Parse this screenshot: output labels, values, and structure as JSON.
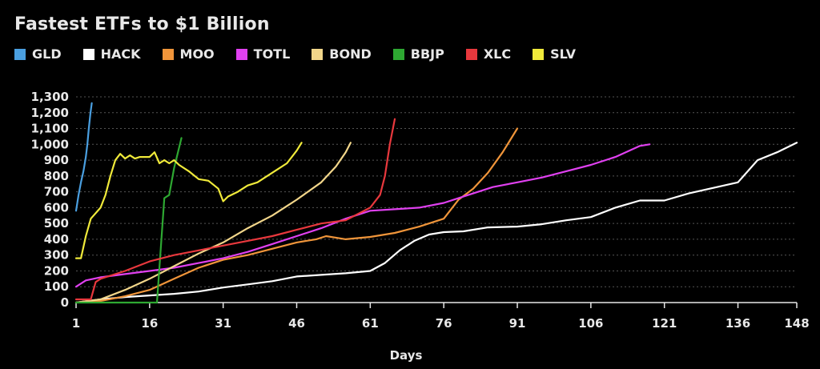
{
  "chart_data": {
    "type": "line",
    "title": "Fastest ETFs to $1 Billion",
    "xlabel": "Days",
    "ylabel": "",
    "xlim": [
      1,
      148
    ],
    "ylim": [
      0,
      1300
    ],
    "x_ticks": [
      1,
      16,
      31,
      46,
      61,
      76,
      91,
      106,
      121,
      136,
      148
    ],
    "y_ticks": [
      0,
      100,
      200,
      300,
      400,
      500,
      600,
      700,
      800,
      900,
      1000,
      1100,
      1200,
      1300
    ],
    "y_tick_labels": [
      "0",
      "100",
      "200",
      "300",
      "400",
      "500",
      "600",
      "700",
      "800",
      "900",
      "1,000",
      "1,100",
      "1,200",
      "1,300"
    ],
    "grid": "horizontal dashed",
    "legend_position": "top-left",
    "series": [
      {
        "name": "GLD",
        "color": "#4a9fe0",
        "x": [
          1,
          1.5,
          2,
          2.5,
          3,
          3.3,
          3.6,
          3.9,
          4.2
        ],
        "y": [
          580,
          680,
          760,
          830,
          920,
          1000,
          1100,
          1190,
          1260
        ]
      },
      {
        "name": "HACK",
        "color": "#ffffff",
        "x": [
          1,
          6,
          11,
          16,
          21,
          26,
          31,
          36,
          41,
          46,
          51,
          56,
          61,
          64,
          67,
          70,
          73,
          76,
          80,
          85,
          91,
          96,
          101,
          106,
          111,
          116,
          121,
          126,
          131,
          136,
          140,
          144,
          148
        ],
        "y": [
          0,
          20,
          35,
          45,
          55,
          70,
          95,
          115,
          135,
          165,
          175,
          185,
          200,
          250,
          330,
          390,
          430,
          445,
          450,
          475,
          480,
          495,
          520,
          540,
          600,
          645,
          645,
          690,
          725,
          760,
          900,
          950,
          1010
        ]
      },
      {
        "name": "MOO",
        "color": "#f0953a",
        "x": [
          1,
          6,
          11,
          16,
          21,
          26,
          31,
          36,
          41,
          46,
          50,
          52,
          54,
          56,
          61,
          66,
          71,
          76,
          79,
          82,
          85,
          88,
          91
        ],
        "y": [
          0,
          10,
          40,
          80,
          150,
          220,
          270,
          300,
          340,
          380,
          400,
          420,
          410,
          400,
          415,
          440,
          480,
          530,
          650,
          720,
          820,
          950,
          1100
        ]
      },
      {
        "name": "TOTL",
        "color": "#e040f0",
        "x": [
          1,
          3,
          6,
          11,
          16,
          21,
          26,
          31,
          36,
          41,
          46,
          51,
          56,
          61,
          66,
          71,
          76,
          81,
          86,
          91,
          96,
          101,
          106,
          111,
          116,
          118
        ],
        "y": [
          100,
          140,
          160,
          180,
          200,
          220,
          250,
          280,
          320,
          370,
          420,
          470,
          530,
          580,
          590,
          600,
          630,
          680,
          730,
          760,
          790,
          830,
          870,
          920,
          990,
          1000
        ]
      },
      {
        "name": "BOND",
        "color": "#f2d68a",
        "x": [
          1,
          6,
          11,
          16,
          21,
          26,
          31,
          36,
          41,
          46,
          51,
          54,
          56,
          57
        ],
        "y": [
          0,
          20,
          80,
          150,
          230,
          310,
          380,
          470,
          550,
          650,
          760,
          860,
          950,
          1010
        ]
      },
      {
        "name": "BBJP",
        "color": "#2ea832",
        "x": [
          1,
          11,
          15,
          17.5,
          19,
          20,
          21,
          22.5
        ],
        "y": [
          0,
          0,
          0,
          0,
          660,
          680,
          850,
          1040
        ]
      },
      {
        "name": "XLC",
        "color": "#e8383d",
        "x": [
          1,
          4,
          5,
          6,
          11,
          16,
          21,
          26,
          31,
          36,
          41,
          46,
          51,
          56,
          61,
          63,
          64,
          65,
          66
        ],
        "y": [
          20,
          20,
          130,
          150,
          200,
          260,
          300,
          330,
          360,
          390,
          420,
          460,
          500,
          520,
          600,
          680,
          800,
          1000,
          1160
        ]
      },
      {
        "name": "SLV",
        "color": "#f0ea3a",
        "x": [
          1,
          2,
          3,
          4,
          6,
          7,
          8,
          9,
          10,
          11,
          12,
          13,
          14,
          16,
          17,
          18,
          19,
          20,
          21,
          22,
          24,
          26,
          28,
          30,
          31,
          32,
          34,
          36,
          38,
          40,
          42,
          44,
          46,
          47
        ],
        "y": [
          280,
          280,
          420,
          530,
          600,
          680,
          800,
          900,
          940,
          910,
          930,
          910,
          920,
          920,
          950,
          880,
          900,
          880,
          900,
          870,
          830,
          780,
          770,
          720,
          640,
          670,
          700,
          740,
          760,
          800,
          840,
          880,
          960,
          1010
        ]
      }
    ]
  }
}
